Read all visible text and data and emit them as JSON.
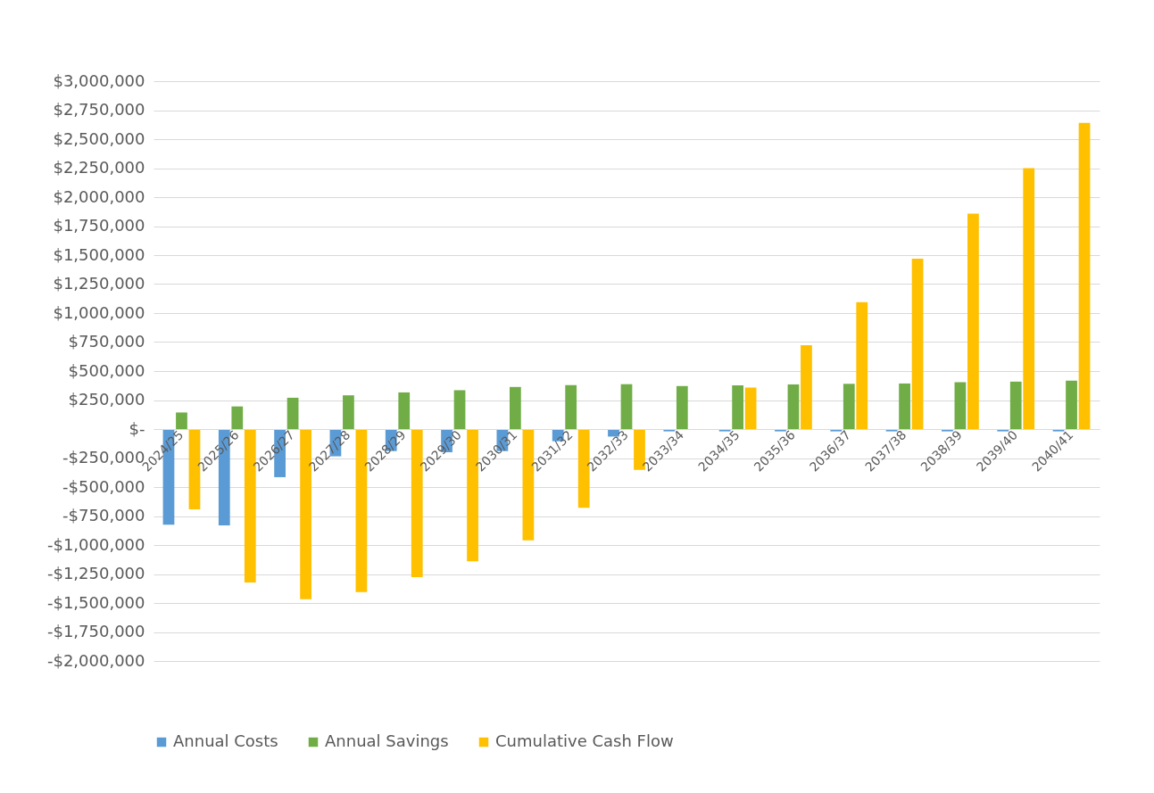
{
  "chart_data": {
    "type": "bar",
    "categories": [
      "2024/25",
      "2025/26",
      "2026/27",
      "2027/28",
      "2028/29",
      "2029/30",
      "2030/31",
      "2031/32",
      "2032/33",
      "2033/34",
      "2034/35",
      "2035/36",
      "2036/37",
      "2037/38",
      "2038/39",
      "2039/40",
      "2040/41"
    ],
    "series": [
      {
        "name": "Annual Costs",
        "color": "#5b9bd5",
        "values": [
          -825000,
          -830000,
          -415000,
          -235000,
          -190000,
          -200000,
          -190000,
          -105000,
          -65000,
          -20000,
          -20000,
          -20000,
          -20000,
          -20000,
          -20000,
          -20000,
          -20000
        ]
      },
      {
        "name": "Annual Savings",
        "color": "#70ad47",
        "values": [
          143000,
          195000,
          270000,
          291000,
          316000,
          335000,
          363000,
          379000,
          387000,
          371000,
          377000,
          385000,
          390000,
          393000,
          404000,
          409000,
          417000
        ]
      },
      {
        "name": "Cumulative Cash Flow",
        "color": "#ffc000",
        "values": [
          -692000,
          -1324000,
          -1467000,
          -1406000,
          -1277000,
          -1140000,
          -959000,
          -679000,
          -352000,
          0,
          358000,
          724000,
          1095000,
          1469000,
          1857000,
          2250000,
          2640000
        ]
      }
    ],
    "ylim": [
      -2000000,
      3000000
    ],
    "yticks": [
      {
        "value": -2000000,
        "label": "-$2,000,000"
      },
      {
        "value": -1750000,
        "label": "-$1,750,000"
      },
      {
        "value": -1500000,
        "label": "-$1,500,000"
      },
      {
        "value": -1250000,
        "label": "-$1,250,000"
      },
      {
        "value": -1000000,
        "label": "-$1,000,000"
      },
      {
        "value": -750000,
        "label": "-$750,000"
      },
      {
        "value": -500000,
        "label": "-$500,000"
      },
      {
        "value": -250000,
        "label": "-$250,000"
      },
      {
        "value": 0,
        "label": "$-"
      },
      {
        "value": 250000,
        "label": "$250,000"
      },
      {
        "value": 500000,
        "label": "$500,000"
      },
      {
        "value": 750000,
        "label": "$750,000"
      },
      {
        "value": 1000000,
        "label": "$1,000,000"
      },
      {
        "value": 1250000,
        "label": "$1,250,000"
      },
      {
        "value": 1500000,
        "label": "$1,500,000"
      },
      {
        "value": 1750000,
        "label": "$1,750,000"
      },
      {
        "value": 2000000,
        "label": "$2,000,000"
      },
      {
        "value": 2250000,
        "label": "$2,250,000"
      },
      {
        "value": 2500000,
        "label": "$2,500,000"
      },
      {
        "value": 2750000,
        "label": "$2,750,000"
      },
      {
        "value": 3000000,
        "label": "$3,000,000"
      }
    ],
    "grid": "y",
    "legend": "bottom"
  }
}
